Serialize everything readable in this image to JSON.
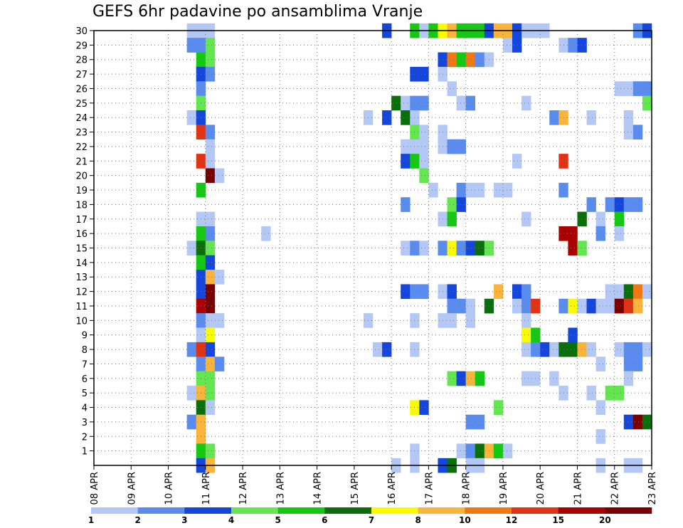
{
  "chart_data": {
    "type": "heatmap",
    "title": "GEFS 6hr padavine po ansamblima Vranje",
    "xlabel": "",
    "ylabel": "",
    "x_tick_labels": [
      "08 APR",
      "09 APR",
      "10 APR",
      "11 APR",
      "12 APR",
      "13 APR",
      "14 APR",
      "15 APR",
      "16 APR",
      "17 APR",
      "18 APR",
      "19 APR",
      "20 APR",
      "21 APR",
      "22 APR",
      "23 APR"
    ],
    "y_tick_labels": [
      "1",
      "2",
      "3",
      "4",
      "5",
      "6",
      "7",
      "8",
      "9",
      "10",
      "11",
      "12",
      "13",
      "14",
      "15",
      "16",
      "17",
      "18",
      "19",
      "20",
      "21",
      "22",
      "23",
      "24",
      "25",
      "26",
      "27",
      "28",
      "29",
      "30"
    ],
    "x_range_days": [
      0,
      15
    ],
    "y_range": [
      0,
      30
    ],
    "grid": true,
    "colorbar": {
      "labels": [
        "1",
        "2",
        "3",
        "4",
        "5",
        "6",
        "7",
        "8",
        "10",
        "12",
        "15",
        "20"
      ],
      "colors": [
        "#b4c8f5",
        "#5a8cf0",
        "#1446dc",
        "#64e650",
        "#14c814",
        "#0a6e0a",
        "#fafa00",
        "#fab43c",
        "#f07814",
        "#e13214",
        "#aa0000",
        "#780000"
      ]
    },
    "cells": [
      [
        2.5,
        30,
        0
      ],
      [
        2.5,
        29,
        1
      ],
      [
        2.5,
        24,
        0
      ],
      [
        2.5,
        15,
        0
      ],
      [
        2.5,
        8,
        1
      ],
      [
        2.5,
        5,
        0
      ],
      [
        2.5,
        3,
        1
      ],
      [
        2.75,
        30,
        0
      ],
      [
        2.75,
        29,
        1
      ],
      [
        2.75,
        28,
        4
      ],
      [
        2.75,
        27,
        2
      ],
      [
        2.75,
        26,
        1
      ],
      [
        2.75,
        25,
        3
      ],
      [
        2.75,
        24,
        2
      ],
      [
        2.75,
        23,
        9
      ],
      [
        2.75,
        21,
        9
      ],
      [
        2.75,
        19,
        4
      ],
      [
        2.75,
        17,
        0
      ],
      [
        2.75,
        16,
        4
      ],
      [
        2.75,
        15,
        5
      ],
      [
        2.75,
        14,
        4
      ],
      [
        2.75,
        13,
        2
      ],
      [
        2.75,
        12,
        2
      ],
      [
        2.75,
        11,
        10
      ],
      [
        2.75,
        10,
        1
      ],
      [
        2.75,
        9,
        0
      ],
      [
        2.75,
        8,
        9
      ],
      [
        2.75,
        7,
        1
      ],
      [
        2.75,
        6,
        3
      ],
      [
        2.75,
        5,
        7
      ],
      [
        2.75,
        4,
        5
      ],
      [
        2.75,
        3,
        7
      ],
      [
        2.75,
        2,
        7
      ],
      [
        2.75,
        1,
        4
      ],
      [
        2.75,
        0,
        2
      ],
      [
        3.0,
        30,
        0
      ],
      [
        3.0,
        29,
        3
      ],
      [
        3.0,
        28,
        3
      ],
      [
        3.0,
        27,
        1
      ],
      [
        3.0,
        23,
        1
      ],
      [
        3.0,
        22,
        0
      ],
      [
        3.0,
        21,
        0
      ],
      [
        3.0,
        20,
        11
      ],
      [
        3.0,
        17,
        0
      ],
      [
        3.0,
        16,
        1
      ],
      [
        3.0,
        15,
        3
      ],
      [
        3.0,
        14,
        2
      ],
      [
        3.0,
        13,
        7
      ],
      [
        3.0,
        12,
        11
      ],
      [
        3.0,
        11,
        11
      ],
      [
        3.0,
        10,
        0
      ],
      [
        3.0,
        9,
        6
      ],
      [
        3.0,
        8,
        2
      ],
      [
        3.0,
        7,
        7
      ],
      [
        3.0,
        6,
        3
      ],
      [
        3.0,
        5,
        3
      ],
      [
        3.0,
        4,
        0
      ],
      [
        3.0,
        1,
        3
      ],
      [
        3.0,
        0,
        7
      ],
      [
        3.25,
        20,
        0
      ],
      [
        3.25,
        13,
        0
      ],
      [
        3.25,
        10,
        0
      ],
      [
        3.25,
        7,
        1
      ],
      [
        4.5,
        16,
        0
      ],
      [
        7.25,
        24,
        0
      ],
      [
        7.25,
        10,
        0
      ],
      [
        7.5,
        8,
        0
      ],
      [
        7.75,
        30,
        2
      ],
      [
        7.75,
        24,
        2
      ],
      [
        7.75,
        8,
        2
      ],
      [
        8.0,
        25,
        5
      ],
      [
        8.0,
        0,
        0
      ],
      [
        8.25,
        25,
        0
      ],
      [
        8.25,
        24,
        5
      ],
      [
        8.25,
        22,
        0
      ],
      [
        8.25,
        21,
        2
      ],
      [
        8.25,
        18,
        1
      ],
      [
        8.25,
        15,
        0
      ],
      [
        8.25,
        12,
        2
      ],
      [
        8.5,
        30,
        4
      ],
      [
        8.5,
        27,
        2
      ],
      [
        8.5,
        25,
        1
      ],
      [
        8.5,
        24,
        0
      ],
      [
        8.5,
        23,
        3
      ],
      [
        8.5,
        22,
        0
      ],
      [
        8.5,
        21,
        4
      ],
      [
        8.5,
        15,
        1
      ],
      [
        8.5,
        12,
        1
      ],
      [
        8.5,
        10,
        0
      ],
      [
        8.5,
        8,
        0
      ],
      [
        8.5,
        4,
        6
      ],
      [
        8.5,
        1,
        0
      ],
      [
        8.5,
        0,
        0
      ],
      [
        8.75,
        30,
        0
      ],
      [
        8.75,
        27,
        2
      ],
      [
        8.75,
        25,
        1
      ],
      [
        8.75,
        23,
        0
      ],
      [
        8.75,
        22,
        0
      ],
      [
        8.75,
        21,
        0
      ],
      [
        8.75,
        20,
        3
      ],
      [
        8.75,
        15,
        0
      ],
      [
        8.75,
        12,
        1
      ],
      [
        8.75,
        4,
        2
      ],
      [
        9.0,
        30,
        4
      ],
      [
        9.0,
        19,
        0
      ],
      [
        9.25,
        30,
        6
      ],
      [
        9.25,
        28,
        2
      ],
      [
        9.25,
        27,
        0
      ],
      [
        9.25,
        23,
        0
      ],
      [
        9.25,
        22,
        0
      ],
      [
        9.25,
        17,
        0
      ],
      [
        9.25,
        15,
        1
      ],
      [
        9.25,
        12,
        0
      ],
      [
        9.25,
        10,
        0
      ],
      [
        9.25,
        0,
        2
      ],
      [
        9.5,
        30,
        7
      ],
      [
        9.5,
        28,
        8
      ],
      [
        9.5,
        26,
        0
      ],
      [
        9.5,
        22,
        1
      ],
      [
        9.5,
        18,
        3
      ],
      [
        9.5,
        17,
        4
      ],
      [
        9.5,
        15,
        6
      ],
      [
        9.5,
        12,
        2
      ],
      [
        9.5,
        11,
        1
      ],
      [
        9.5,
        10,
        0
      ],
      [
        9.5,
        6,
        3
      ],
      [
        9.5,
        0,
        5
      ],
      [
        9.75,
        30,
        4
      ],
      [
        9.75,
        28,
        4
      ],
      [
        9.75,
        25,
        0
      ],
      [
        9.75,
        22,
        1
      ],
      [
        9.75,
        19,
        1
      ],
      [
        9.75,
        18,
        2
      ],
      [
        9.75,
        15,
        1
      ],
      [
        9.75,
        11,
        1
      ],
      [
        9.75,
        6,
        2
      ],
      [
        9.75,
        1,
        0
      ],
      [
        10.0,
        30,
        4
      ],
      [
        10.0,
        28,
        8
      ],
      [
        10.0,
        25,
        1
      ],
      [
        10.0,
        19,
        0
      ],
      [
        10.0,
        15,
        2
      ],
      [
        10.0,
        11,
        0
      ],
      [
        10.0,
        10,
        0
      ],
      [
        10.0,
        6,
        7
      ],
      [
        10.0,
        3,
        1
      ],
      [
        10.0,
        1,
        1
      ],
      [
        10.0,
        0,
        0
      ],
      [
        10.25,
        30,
        4
      ],
      [
        10.25,
        28,
        1
      ],
      [
        10.25,
        19,
        0
      ],
      [
        10.25,
        15,
        5
      ],
      [
        10.25,
        6,
        4
      ],
      [
        10.25,
        3,
        1
      ],
      [
        10.25,
        1,
        5
      ],
      [
        10.25,
        0,
        0
      ],
      [
        10.5,
        30,
        2
      ],
      [
        10.5,
        28,
        0
      ],
      [
        10.5,
        15,
        3
      ],
      [
        10.5,
        11,
        5
      ],
      [
        10.5,
        1,
        7
      ],
      [
        10.75,
        30,
        7
      ],
      [
        10.75,
        19,
        0
      ],
      [
        10.75,
        12,
        7
      ],
      [
        10.75,
        4,
        3
      ],
      [
        10.75,
        1,
        4
      ],
      [
        11.0,
        30,
        7
      ],
      [
        11.0,
        29,
        0
      ],
      [
        11.0,
        19,
        0
      ],
      [
        11.0,
        1,
        0
      ],
      [
        11.25,
        30,
        2
      ],
      [
        11.25,
        29,
        2
      ],
      [
        11.25,
        21,
        0
      ],
      [
        11.25,
        12,
        2
      ],
      [
        11.25,
        11,
        0
      ],
      [
        11.5,
        30,
        0
      ],
      [
        11.5,
        25,
        0
      ],
      [
        11.5,
        17,
        0
      ],
      [
        11.5,
        12,
        1
      ],
      [
        11.5,
        11,
        1
      ],
      [
        11.5,
        10,
        0
      ],
      [
        11.5,
        9,
        6
      ],
      [
        11.5,
        8,
        0
      ],
      [
        11.5,
        6,
        0
      ],
      [
        11.75,
        30,
        0
      ],
      [
        11.75,
        11,
        9
      ],
      [
        11.75,
        9,
        4
      ],
      [
        11.75,
        8,
        1
      ],
      [
        11.75,
        6,
        0
      ],
      [
        12.0,
        30,
        0
      ],
      [
        12.0,
        8,
        2
      ],
      [
        12.25,
        24,
        1
      ],
      [
        12.25,
        8,
        0
      ],
      [
        12.25,
        6,
        0
      ],
      [
        12.5,
        29,
        0
      ],
      [
        12.5,
        24,
        7
      ],
      [
        12.5,
        21,
        9
      ],
      [
        12.5,
        19,
        1
      ],
      [
        12.5,
        16,
        10
      ],
      [
        12.5,
        11,
        1
      ],
      [
        12.5,
        8,
        5
      ],
      [
        12.5,
        5,
        0
      ],
      [
        12.75,
        29,
        1
      ],
      [
        12.75,
        16,
        10
      ],
      [
        12.75,
        15,
        10
      ],
      [
        12.75,
        11,
        6
      ],
      [
        12.75,
        9,
        2
      ],
      [
        12.75,
        8,
        5
      ],
      [
        13.0,
        29,
        2
      ],
      [
        13.0,
        17,
        5
      ],
      [
        13.0,
        15,
        3
      ],
      [
        13.0,
        11,
        0
      ],
      [
        13.0,
        8,
        7
      ],
      [
        13.25,
        24,
        0
      ],
      [
        13.25,
        18,
        1
      ],
      [
        13.25,
        11,
        2
      ],
      [
        13.25,
        8,
        0
      ],
      [
        13.25,
        5,
        0
      ],
      [
        13.5,
        17,
        0
      ],
      [
        13.5,
        16,
        1
      ],
      [
        13.5,
        11,
        0
      ],
      [
        13.5,
        7,
        0
      ],
      [
        13.5,
        4,
        0
      ],
      [
        13.5,
        2,
        0
      ],
      [
        13.5,
        0,
        0
      ],
      [
        13.75,
        18,
        1
      ],
      [
        13.75,
        12,
        0
      ],
      [
        13.75,
        11,
        0
      ],
      [
        13.75,
        5,
        3
      ],
      [
        14.0,
        26,
        0
      ],
      [
        14.0,
        18,
        2
      ],
      [
        14.0,
        17,
        4
      ],
      [
        14.0,
        16,
        0
      ],
      [
        14.0,
        12,
        0
      ],
      [
        14.0,
        11,
        11
      ],
      [
        14.0,
        8,
        0
      ],
      [
        14.0,
        5,
        3
      ],
      [
        14.25,
        26,
        0
      ],
      [
        14.25,
        24,
        0
      ],
      [
        14.25,
        23,
        0
      ],
      [
        14.25,
        18,
        1
      ],
      [
        14.25,
        12,
        5
      ],
      [
        14.25,
        11,
        9
      ],
      [
        14.25,
        8,
        1
      ],
      [
        14.25,
        7,
        1
      ],
      [
        14.25,
        6,
        0
      ],
      [
        14.25,
        3,
        2
      ],
      [
        14.25,
        0,
        0
      ],
      [
        14.5,
        30,
        1
      ],
      [
        14.5,
        26,
        1
      ],
      [
        14.5,
        23,
        1
      ],
      [
        14.5,
        18,
        1
      ],
      [
        14.5,
        12,
        8
      ],
      [
        14.5,
        11,
        7
      ],
      [
        14.5,
        8,
        1
      ],
      [
        14.5,
        7,
        1
      ],
      [
        14.5,
        3,
        11
      ],
      [
        14.5,
        0,
        0
      ],
      [
        14.75,
        30,
        2
      ],
      [
        14.75,
        26,
        1
      ],
      [
        14.75,
        25,
        3
      ],
      [
        14.75,
        12,
        0
      ],
      [
        14.75,
        8,
        0
      ],
      [
        14.75,
        3,
        5
      ]
    ]
  }
}
